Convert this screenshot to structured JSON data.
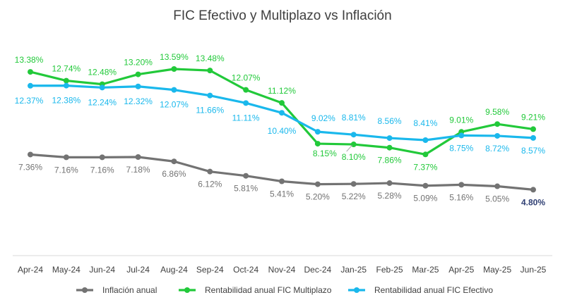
{
  "chart_data": {
    "type": "line",
    "title": "FIC Efectivo y Multiplazo vs Inflación",
    "xlabel": "",
    "ylabel": "",
    "categories": [
      "Apr-24",
      "May-24",
      "Jun-24",
      "Jul-24",
      "Aug-24",
      "Sep-24",
      "Oct-24",
      "Nov-24",
      "Dec-24",
      "Jan-25",
      "Feb-25",
      "Mar-25",
      "Apr-25",
      "May-25",
      "Jun-25"
    ],
    "ylim": [
      0,
      16
    ],
    "grid": false,
    "legend_position": "bottom",
    "series": [
      {
        "name": "Inflación anual",
        "color": "#737373",
        "values": [
          7.36,
          7.16,
          7.16,
          7.18,
          6.86,
          6.12,
          5.81,
          5.41,
          5.2,
          5.22,
          5.28,
          5.09,
          5.16,
          5.05,
          4.8
        ],
        "labels": [
          "7.36%",
          "7.16%",
          "7.16%",
          "7.18%",
          "6.86%",
          "6.12%",
          "5.81%",
          "5.41%",
          "5.20%",
          "5.22%",
          "5.28%",
          "5.09%",
          "5.16%",
          "5.05%",
          "4.80%"
        ]
      },
      {
        "name": "Rentabilidad anual FIC Multiplazo",
        "color": "#22c93a",
        "values": [
          13.38,
          12.74,
          12.48,
          13.2,
          13.59,
          13.48,
          12.07,
          11.12,
          8.15,
          8.1,
          7.86,
          7.37,
          9.01,
          9.58,
          9.21
        ],
        "labels": [
          "13.38%",
          "12.74%",
          "12.48%",
          "13.20%",
          "13.59%",
          "13.48%",
          "12.07%",
          "11.12%",
          "8.15%",
          "8.10%",
          "7.86%",
          "7.37%",
          "9.01%",
          "9.58%",
          "9.21%"
        ]
      },
      {
        "name": "Rentabilidad anual FIC Efectivo",
        "color": "#1ab8ec",
        "values": [
          12.37,
          12.38,
          12.24,
          12.32,
          12.07,
          11.66,
          11.11,
          10.4,
          9.02,
          8.81,
          8.56,
          8.41,
          8.75,
          8.72,
          8.57
        ],
        "labels": [
          "12.37%",
          "12.38%",
          "12.24%",
          "12.32%",
          "12.07%",
          "11.66%",
          "11.11%",
          "10.40%",
          "9.02%",
          "8.81%",
          "8.56%",
          "8.41%",
          "8.75%",
          "8.72%",
          "8.57%"
        ]
      }
    ],
    "highlight_label_color": "#2f3f73"
  }
}
